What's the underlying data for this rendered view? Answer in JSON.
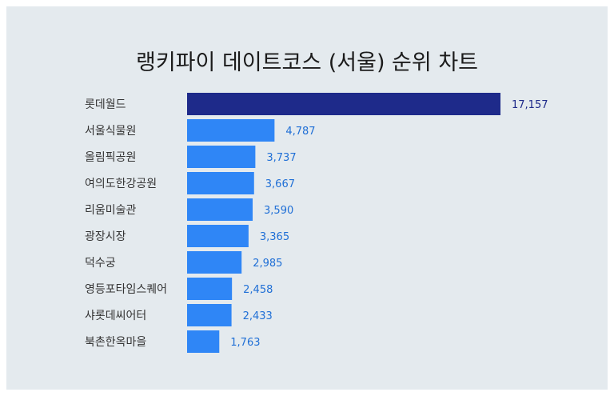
{
  "chart_data": {
    "type": "bar",
    "orientation": "horizontal",
    "title": "랭키파이 데이트코스 (서울) 순위 차트",
    "categories": [
      "롯데월드",
      "서울식물원",
      "올림픽공원",
      "여의도한강공원",
      "리움미술관",
      "광장시장",
      "덕수궁",
      "영등포타임스퀘어",
      "샤롯데씨어터",
      "북촌한옥마을"
    ],
    "values": [
      17157,
      4787,
      3737,
      3667,
      3590,
      3365,
      2985,
      2458,
      2433,
      1763
    ],
    "value_labels": [
      "17,157",
      "4,787",
      "3,737",
      "3,667",
      "3,590",
      "3,365",
      "2,985",
      "2,458",
      "2,433",
      "1,763"
    ],
    "xlim": [
      0,
      17157
    ],
    "grid": false,
    "colors": {
      "top_bar": "#1e2a8a",
      "bar": "#2f86f6",
      "top_label": "#1e2a8a",
      "label": "#1f6fd6",
      "category": "#333333"
    }
  }
}
